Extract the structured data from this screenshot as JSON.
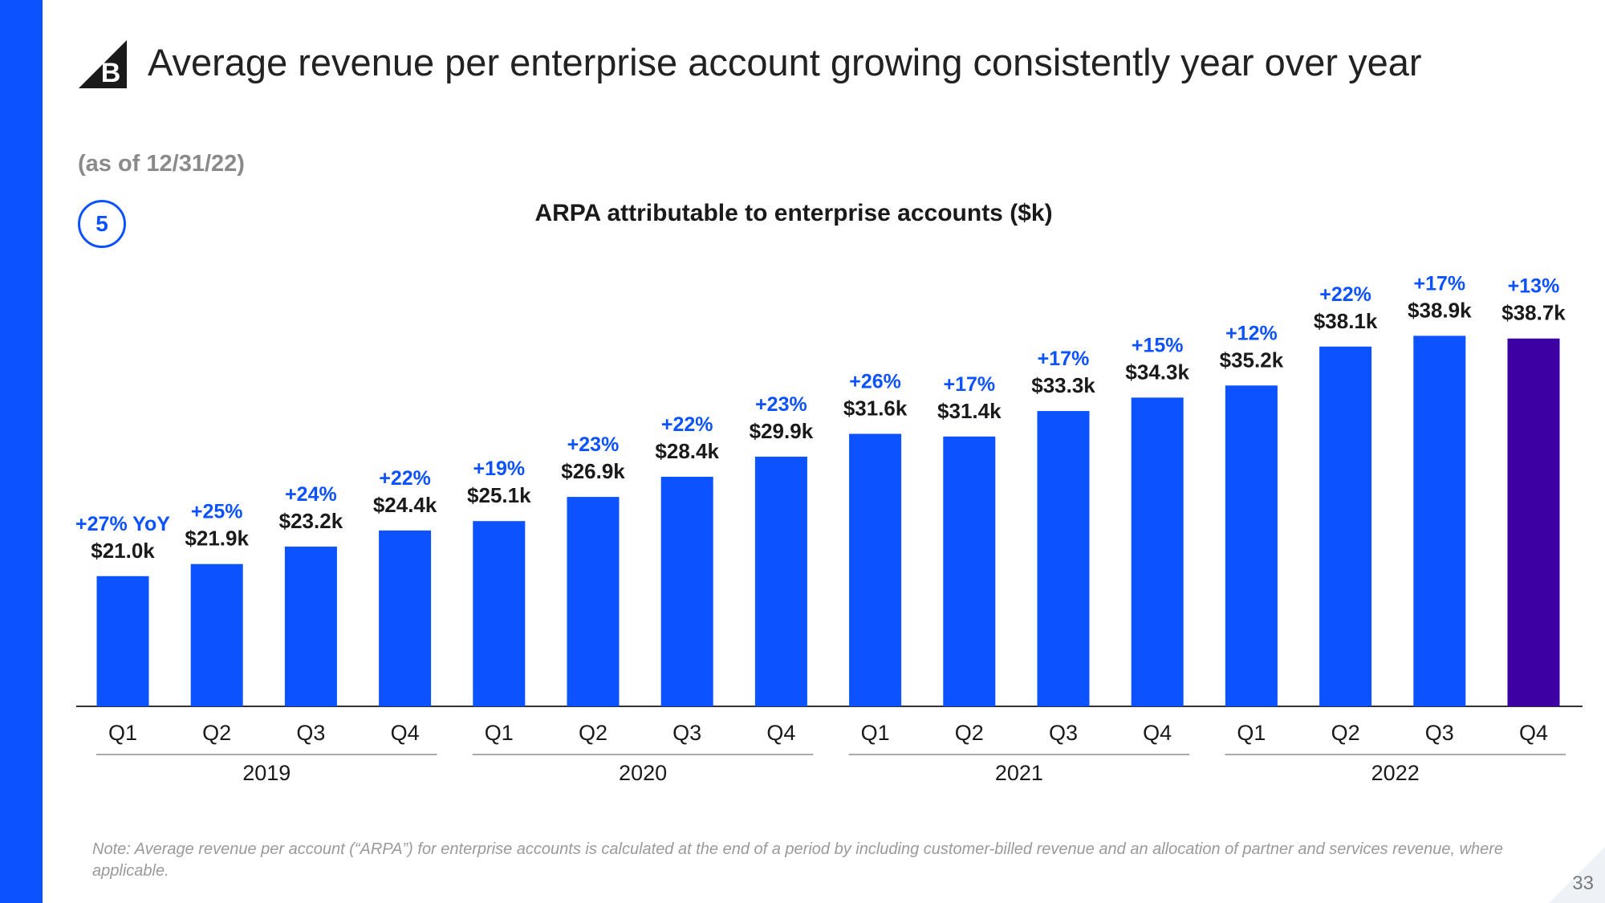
{
  "header": {
    "title": "Average revenue per enterprise account growing consistently year over year",
    "logo_icon": "bigcommerce-logo-icon",
    "logo_letter": "B"
  },
  "as_of": "(as of 12/31/22)",
  "badge": "5",
  "note": "Note: Average revenue per account (“ARPA”) for enterprise accounts is calculated at the end of a period by including customer-billed revenue and an allocation of partner and services revenue, where applicable.",
  "page_number": "33",
  "colors": {
    "accent": "#0d52ff",
    "highlight": "#3d00a3",
    "text": "#1a1a1a"
  },
  "chart_data": {
    "type": "bar",
    "title": "ARPA attributable to enterprise accounts ($k)",
    "xlabel": "",
    "ylabel": "",
    "categories": [
      "Q1",
      "Q2",
      "Q3",
      "Q4",
      "Q1",
      "Q2",
      "Q3",
      "Q4",
      "Q1",
      "Q2",
      "Q3",
      "Q4",
      "Q1",
      "Q2",
      "Q3",
      "Q4"
    ],
    "years": [
      "2019",
      "2020",
      "2021",
      "2022"
    ],
    "values": [
      21.0,
      21.9,
      23.2,
      24.4,
      25.1,
      26.9,
      28.4,
      29.9,
      31.6,
      31.4,
      33.3,
      34.3,
      35.2,
      38.1,
      38.9,
      38.7
    ],
    "value_labels": [
      "$21.0k",
      "$21.9k",
      "$23.2k",
      "$24.4k",
      "$25.1k",
      "$26.9k",
      "$28.4k",
      "$29.9k",
      "$31.6k",
      "$31.4k",
      "$33.3k",
      "$34.3k",
      "$35.2k",
      "$38.1k",
      "$38.9k",
      "$38.7k"
    ],
    "yoy_labels": [
      "+27% YoY",
      "+25%",
      "+24%",
      "+22%",
      "+19%",
      "+23%",
      "+22%",
      "+23%",
      "+26%",
      "+17%",
      "+17%",
      "+15%",
      "+12%",
      "+22%",
      "+17%",
      "+13%"
    ],
    "highlight_index": 15,
    "ylim": [
      11.3,
      40
    ]
  }
}
